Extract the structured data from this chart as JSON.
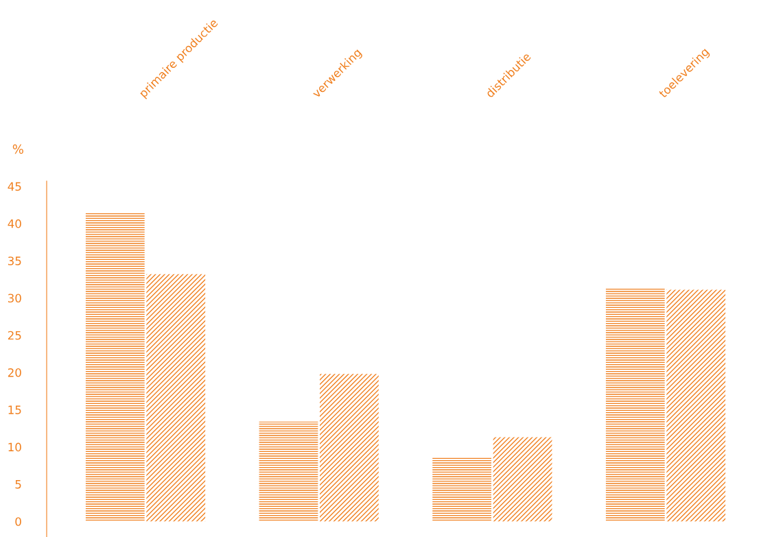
{
  "chart_data": {
    "type": "bar",
    "ylabel": "%",
    "categories": [
      "primaire productie",
      "verwerking",
      "distributie",
      "toelevering"
    ],
    "series": [
      {
        "color": "#f07f1e",
        "values": [
          41.5,
          13.4,
          8.6,
          31.3
        ]
      },
      {
        "color": "#f07f1e",
        "values": [
          33.2,
          19.8,
          11.3,
          31.1
        ]
      }
    ],
    "ylim": [
      -2.1,
      45.7
    ],
    "yticks": [
      0,
      5,
      10,
      15,
      20,
      25,
      30,
      35,
      40,
      45
    ],
    "grid": false,
    "legend": false
  }
}
